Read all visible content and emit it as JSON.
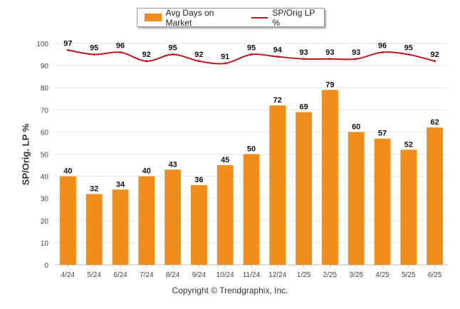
{
  "chart_data": {
    "type": "bar",
    "categories": [
      "4/24",
      "5/24",
      "6/24",
      "7/24",
      "8/24",
      "9/24",
      "10/24",
      "11/24",
      "12/24",
      "1/25",
      "2/25",
      "3/25",
      "4/25",
      "5/25",
      "6/25"
    ],
    "series": [
      {
        "name": "Avg Days on Market",
        "type": "bar",
        "color": "#F28C1A",
        "values": [
          40,
          32,
          34,
          40,
          43,
          36,
          45,
          50,
          72,
          69,
          79,
          60,
          57,
          52,
          62
        ]
      },
      {
        "name": "SP/Orig LP %",
        "type": "line",
        "color": "#C0141B",
        "values": [
          97,
          95,
          96,
          92,
          95,
          92,
          91,
          95,
          94,
          93,
          93,
          93,
          96,
          95,
          92
        ]
      }
    ],
    "ylabel": "SP/Orig. LP %",
    "ylim": [
      0,
      100
    ],
    "yticks": [
      0,
      10,
      20,
      30,
      40,
      50,
      60,
      70,
      80,
      90,
      100
    ],
    "grid": true,
    "legend_position": "top-center"
  },
  "copyright": "Copyright © Trendgraphix, Inc."
}
